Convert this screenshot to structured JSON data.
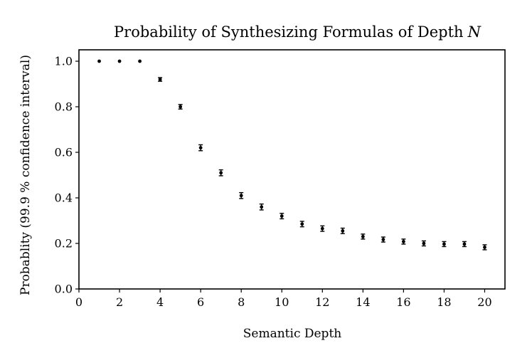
{
  "chart_data": {
    "type": "scatter",
    "title": "Probability of Synthesizing Formulas of Depth",
    "title_variable": "N",
    "xlabel": "Semantic Depth",
    "ylabel": "Probablity (99.9 % confidence interval)",
    "xlim": [
      0,
      21
    ],
    "ylim": [
      0,
      1.05
    ],
    "xticks": [
      0,
      2,
      4,
      6,
      8,
      10,
      12,
      14,
      16,
      18,
      20
    ],
    "xtick_labels": [
      "0",
      "2",
      "4",
      "6",
      "8",
      "10",
      "12",
      "14",
      "16",
      "18",
      "20"
    ],
    "yticks": [
      0.0,
      0.2,
      0.4,
      0.6,
      0.8,
      1.0
    ],
    "ytick_labels": [
      "0.0",
      "0.2",
      "0.4",
      "0.6",
      "0.8",
      "1.0"
    ],
    "grid": false,
    "legend": false,
    "series": [
      {
        "name": "probability",
        "x": [
          1,
          2,
          3,
          4,
          5,
          6,
          7,
          8,
          9,
          10,
          11,
          12,
          13,
          14,
          15,
          16,
          17,
          18,
          19,
          20
        ],
        "y": [
          1.0,
          1.0,
          1.0,
          0.92,
          0.8,
          0.62,
          0.51,
          0.41,
          0.36,
          0.32,
          0.285,
          0.265,
          0.255,
          0.23,
          0.217,
          0.208,
          0.2,
          0.197,
          0.197,
          0.183
        ],
        "err": [
          0.0,
          0.0,
          0.0,
          0.008,
          0.01,
          0.013,
          0.013,
          0.013,
          0.013,
          0.012,
          0.012,
          0.012,
          0.012,
          0.011,
          0.011,
          0.011,
          0.011,
          0.011,
          0.011,
          0.011
        ]
      }
    ]
  }
}
